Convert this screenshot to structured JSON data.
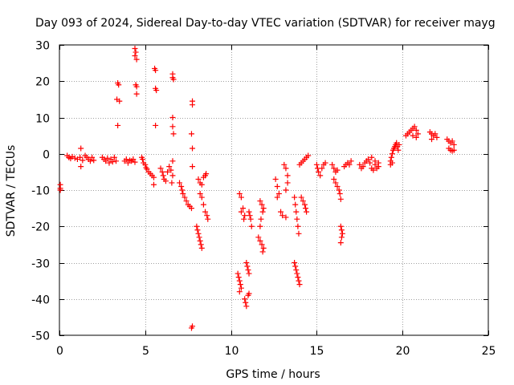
{
  "chart_data": {
    "type": "scatter",
    "title": "Day 093 of 2024, Sidereal Day-to-day VTEC variation (SDTVAR) for receiver mayg",
    "xlabel": "GPS time / hours",
    "ylabel": "SDTVAR / TECUs",
    "xlim": [
      0,
      25
    ],
    "ylim": [
      -50,
      30
    ],
    "xticks": [
      0,
      5,
      10,
      15,
      20,
      25
    ],
    "yticks": [
      -50,
      -40,
      -30,
      -20,
      -10,
      0,
      10,
      20,
      30
    ],
    "grid": true,
    "marker": "+",
    "marker_color": "#ff0000",
    "series": [
      {
        "name": "SDTVAR",
        "points": [
          [
            0.05,
            -8.5
          ],
          [
            0.05,
            -9.5
          ],
          [
            0.05,
            -10
          ],
          [
            0.45,
            -0.5
          ],
          [
            0.55,
            -1
          ],
          [
            0.65,
            -1.3
          ],
          [
            0.75,
            -0.8
          ],
          [
            0.9,
            -1.2
          ],
          [
            1.05,
            -1.5
          ],
          [
            1.2,
            -1
          ],
          [
            1.25,
            1.5
          ],
          [
            1.25,
            -3.5
          ],
          [
            1.35,
            -1.8
          ],
          [
            1.5,
            -0.5
          ],
          [
            1.6,
            -1
          ],
          [
            1.7,
            -1.5
          ],
          [
            1.8,
            -2
          ],
          [
            1.9,
            -1
          ],
          [
            2.0,
            -1.8
          ],
          [
            2.5,
            -1
          ],
          [
            2.6,
            -1.5
          ],
          [
            2.7,
            -2
          ],
          [
            2.8,
            -1.2
          ],
          [
            2.9,
            -2.5
          ],
          [
            3.0,
            -1.5
          ],
          [
            3.1,
            -2.2
          ],
          [
            3.2,
            -1
          ],
          [
            3.3,
            -2
          ],
          [
            3.35,
            15
          ],
          [
            3.4,
            19.5
          ],
          [
            3.45,
            19
          ],
          [
            3.4,
            7.8
          ],
          [
            3.5,
            14.5
          ],
          [
            3.8,
            -2
          ],
          [
            3.9,
            -1.5
          ],
          [
            4.0,
            -2.5
          ],
          [
            4.1,
            -1.8
          ],
          [
            4.2,
            -2
          ],
          [
            4.3,
            -1.5
          ],
          [
            4.4,
            -2.3
          ],
          [
            4.4,
            29
          ],
          [
            4.45,
            28
          ],
          [
            4.4,
            27
          ],
          [
            4.5,
            26
          ],
          [
            4.45,
            19
          ],
          [
            4.5,
            18.5
          ],
          [
            4.5,
            16.5
          ],
          [
            4.8,
            -1
          ],
          [
            4.85,
            -1.5
          ],
          [
            4.9,
            -2.5
          ],
          [
            5.0,
            -3
          ],
          [
            5.05,
            -3.8
          ],
          [
            5.1,
            -4.2
          ],
          [
            5.2,
            -5
          ],
          [
            5.3,
            -5.5
          ],
          [
            5.4,
            -6
          ],
          [
            5.5,
            -6.5
          ],
          [
            5.5,
            -8.5
          ],
          [
            5.55,
            23.5
          ],
          [
            5.6,
            23
          ],
          [
            5.6,
            18
          ],
          [
            5.65,
            17.5
          ],
          [
            5.6,
            7.8
          ],
          [
            5.9,
            -4
          ],
          [
            6.0,
            -5
          ],
          [
            6.05,
            -6
          ],
          [
            6.1,
            -7
          ],
          [
            6.2,
            -7.5
          ],
          [
            6.3,
            -5
          ],
          [
            6.4,
            -3.5
          ],
          [
            6.5,
            -4.5
          ],
          [
            6.55,
            -8
          ],
          [
            6.6,
            -6
          ],
          [
            6.6,
            22
          ],
          [
            6.6,
            21
          ],
          [
            6.65,
            20.5
          ],
          [
            6.6,
            10
          ],
          [
            6.6,
            7.5
          ],
          [
            6.65,
            5.5
          ],
          [
            6.6,
            -2
          ],
          [
            7.0,
            -8
          ],
          [
            7.1,
            -9
          ],
          [
            7.15,
            -10
          ],
          [
            7.2,
            -11
          ],
          [
            7.3,
            -12
          ],
          [
            7.4,
            -13
          ],
          [
            7.5,
            -14
          ],
          [
            7.6,
            -14.5
          ],
          [
            7.7,
            -15
          ],
          [
            7.75,
            14.5
          ],
          [
            7.75,
            13.5
          ],
          [
            7.7,
            5.5
          ],
          [
            7.75,
            1.5
          ],
          [
            7.75,
            -3.5
          ],
          [
            7.7,
            -48
          ],
          [
            7.75,
            -47.5
          ],
          [
            8.0,
            -20
          ],
          [
            8.05,
            -21
          ],
          [
            8.1,
            -22
          ],
          [
            8.15,
            -23
          ],
          [
            8.2,
            -24
          ],
          [
            8.25,
            -25
          ],
          [
            8.3,
            -26
          ],
          [
            8.1,
            -7
          ],
          [
            8.2,
            -8
          ],
          [
            8.3,
            -8.5
          ],
          [
            8.4,
            -6.5
          ],
          [
            8.5,
            -6
          ],
          [
            8.55,
            -5.5
          ],
          [
            8.2,
            -11
          ],
          [
            8.3,
            -12
          ],
          [
            8.4,
            -14
          ],
          [
            8.5,
            -16
          ],
          [
            8.6,
            -17
          ],
          [
            8.65,
            -18
          ],
          [
            10.5,
            -11
          ],
          [
            10.6,
            -12
          ],
          [
            10.7,
            -15
          ],
          [
            10.8,
            -17
          ],
          [
            10.6,
            -16
          ],
          [
            10.75,
            -18
          ],
          [
            10.4,
            -33
          ],
          [
            10.45,
            -34
          ],
          [
            10.5,
            -35
          ],
          [
            10.55,
            -36
          ],
          [
            10.6,
            -37
          ],
          [
            10.5,
            -38
          ],
          [
            10.8,
            -40
          ],
          [
            10.85,
            -41
          ],
          [
            10.9,
            -42
          ],
          [
            11.0,
            -39
          ],
          [
            11.05,
            -38.5
          ],
          [
            10.9,
            -30
          ],
          [
            10.95,
            -31
          ],
          [
            11.0,
            -32
          ],
          [
            11.05,
            -33
          ],
          [
            11.05,
            -16
          ],
          [
            11.1,
            -17
          ],
          [
            11.15,
            -18
          ],
          [
            11.2,
            -20
          ],
          [
            11.6,
            -23
          ],
          [
            11.7,
            -24
          ],
          [
            11.8,
            -25
          ],
          [
            11.9,
            -26
          ],
          [
            11.85,
            -27
          ],
          [
            11.7,
            -13
          ],
          [
            11.8,
            -14
          ],
          [
            11.9,
            -15
          ],
          [
            11.85,
            -16
          ],
          [
            11.75,
            -18
          ],
          [
            11.7,
            -20
          ],
          [
            12.6,
            -7
          ],
          [
            12.7,
            -9
          ],
          [
            12.8,
            -11
          ],
          [
            12.7,
            -12
          ],
          [
            12.9,
            -16
          ],
          [
            13.0,
            -17
          ],
          [
            13.2,
            -17.5
          ],
          [
            13.1,
            -3
          ],
          [
            13.2,
            -4
          ],
          [
            13.3,
            -6
          ],
          [
            13.3,
            -8
          ],
          [
            13.2,
            -10
          ],
          [
            13.7,
            -12
          ],
          [
            13.75,
            -14
          ],
          [
            13.8,
            -16
          ],
          [
            13.85,
            -18
          ],
          [
            13.9,
            -20
          ],
          [
            13.95,
            -22
          ],
          [
            13.7,
            -30
          ],
          [
            13.75,
            -31
          ],
          [
            13.8,
            -32
          ],
          [
            13.85,
            -33
          ],
          [
            13.9,
            -34
          ],
          [
            13.95,
            -35
          ],
          [
            14.0,
            -36
          ],
          [
            14.0,
            -3
          ],
          [
            14.1,
            -2.5
          ],
          [
            14.2,
            -2
          ],
          [
            14.3,
            -1.5
          ],
          [
            14.4,
            -1
          ],
          [
            14.5,
            -0.5
          ],
          [
            14.1,
            -12
          ],
          [
            14.2,
            -13
          ],
          [
            14.3,
            -14
          ],
          [
            14.35,
            -15
          ],
          [
            14.4,
            -16
          ],
          [
            15.0,
            -3
          ],
          [
            15.05,
            -4
          ],
          [
            15.1,
            -5
          ],
          [
            15.2,
            -6
          ],
          [
            15.3,
            -4
          ],
          [
            15.4,
            -3
          ],
          [
            15.5,
            -2.5
          ],
          [
            15.9,
            -3
          ],
          [
            16.0,
            -4
          ],
          [
            16.1,
            -5
          ],
          [
            16.2,
            -4.5
          ],
          [
            16.0,
            -7
          ],
          [
            16.1,
            -8
          ],
          [
            16.2,
            -9
          ],
          [
            16.3,
            -10
          ],
          [
            16.35,
            -11
          ],
          [
            16.4,
            -12.5
          ],
          [
            16.4,
            -20
          ],
          [
            16.45,
            -21
          ],
          [
            16.5,
            -22
          ],
          [
            16.45,
            -23
          ],
          [
            16.4,
            -24.5
          ],
          [
            16.6,
            -3.5
          ],
          [
            16.7,
            -3
          ],
          [
            16.8,
            -2.5
          ],
          [
            16.9,
            -3
          ],
          [
            17.0,
            -2
          ],
          [
            17.5,
            -3
          ],
          [
            17.6,
            -4
          ],
          [
            17.7,
            -3.5
          ],
          [
            17.8,
            -2.5
          ],
          [
            17.9,
            -2
          ],
          [
            18.0,
            -1.5
          ],
          [
            18.1,
            -2.5
          ],
          [
            18.2,
            -4
          ],
          [
            18.3,
            -4.5
          ],
          [
            18.4,
            -3
          ],
          [
            18.5,
            -4
          ],
          [
            18.6,
            -3.5
          ],
          [
            18.2,
            -1
          ],
          [
            18.4,
            -2
          ],
          [
            18.6,
            -2.5
          ],
          [
            19.3,
            -2
          ],
          [
            19.35,
            -1
          ],
          [
            19.4,
            0
          ],
          [
            19.45,
            1
          ],
          [
            19.5,
            1.5
          ],
          [
            19.55,
            2
          ],
          [
            19.6,
            2.5
          ],
          [
            19.65,
            3
          ],
          [
            19.7,
            2
          ],
          [
            19.75,
            1
          ],
          [
            19.8,
            2.5
          ],
          [
            19.3,
            -3
          ],
          [
            19.4,
            -2.5
          ],
          [
            20.2,
            5
          ],
          [
            20.3,
            5.5
          ],
          [
            20.4,
            6
          ],
          [
            20.5,
            6.5
          ],
          [
            20.6,
            7
          ],
          [
            20.7,
            7.5
          ],
          [
            20.8,
            6.5
          ],
          [
            20.9,
            5.5
          ],
          [
            20.6,
            5
          ],
          [
            20.8,
            4.5
          ],
          [
            21.6,
            6
          ],
          [
            21.7,
            5.5
          ],
          [
            21.8,
            5
          ],
          [
            21.9,
            5.5
          ],
          [
            22.0,
            4.5
          ],
          [
            21.7,
            4
          ],
          [
            22.6,
            4
          ],
          [
            22.7,
            3.5
          ],
          [
            22.8,
            3
          ],
          [
            22.9,
            3.5
          ],
          [
            23.0,
            2.5
          ],
          [
            22.7,
            1.5
          ],
          [
            22.8,
            1
          ],
          [
            22.9,
            0.8
          ],
          [
            23.0,
            1
          ]
        ]
      }
    ]
  }
}
